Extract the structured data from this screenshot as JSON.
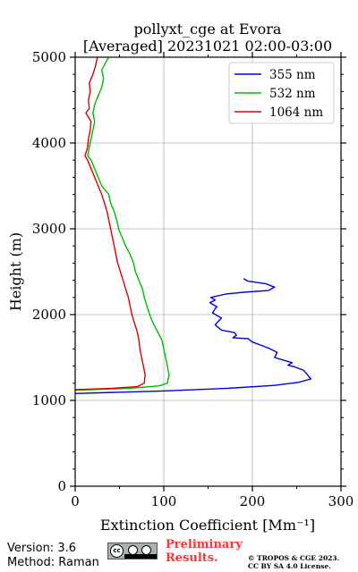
{
  "chart_data": {
    "type": "line",
    "title_line1": "pollyxt_cge at Evora",
    "title_line2": "[Averaged] 20231021 02:00-03:00",
    "xlabel": "Extinction Coefficient [Mm⁻¹]",
    "ylabel": "Height (m)",
    "xlim": [
      0,
      300
    ],
    "ylim": [
      0,
      5000
    ],
    "x_ticks": [
      0,
      100,
      200,
      300
    ],
    "y_ticks": [
      0,
      1000,
      2000,
      3000,
      4000,
      5000
    ],
    "grid": true,
    "legend_position": "top-right",
    "series": [
      {
        "name": "355 nm",
        "color": "#0000dd",
        "points": [
          [
            0,
            1080
          ],
          [
            100,
            1110
          ],
          [
            170,
            1140
          ],
          [
            225,
            1175
          ],
          [
            252,
            1210
          ],
          [
            266,
            1250
          ],
          [
            262,
            1300
          ],
          [
            258,
            1350
          ],
          [
            248,
            1390
          ],
          [
            240,
            1410
          ],
          [
            245,
            1440
          ],
          [
            235,
            1470
          ],
          [
            225,
            1500
          ],
          [
            228,
            1560
          ],
          [
            218,
            1610
          ],
          [
            200,
            1680
          ],
          [
            195,
            1720
          ],
          [
            178,
            1730
          ],
          [
            182,
            1760
          ],
          [
            180,
            1790
          ],
          [
            165,
            1820
          ],
          [
            158,
            1880
          ],
          [
            165,
            1960
          ],
          [
            155,
            2020
          ],
          [
            158,
            2070
          ],
          [
            160,
            2090
          ],
          [
            152,
            2140
          ],
          [
            158,
            2170
          ],
          [
            153,
            2200
          ],
          [
            170,
            2240
          ],
          [
            190,
            2260
          ],
          [
            218,
            2280
          ],
          [
            225,
            2320
          ],
          [
            215,
            2360
          ],
          [
            195,
            2390
          ],
          [
            190,
            2420
          ]
        ]
      },
      {
        "name": "532 nm",
        "color": "#00bb00",
        "points": [
          [
            0,
            1120
          ],
          [
            60,
            1140
          ],
          [
            95,
            1170
          ],
          [
            104,
            1200
          ],
          [
            106,
            1300
          ],
          [
            104,
            1400
          ],
          [
            102,
            1500
          ],
          [
            100,
            1600
          ],
          [
            98,
            1700
          ],
          [
            93,
            1800
          ],
          [
            88,
            1900
          ],
          [
            84,
            2000
          ],
          [
            81,
            2100
          ],
          [
            78,
            2200
          ],
          [
            76,
            2300
          ],
          [
            72,
            2400
          ],
          [
            68,
            2500
          ],
          [
            66,
            2600
          ],
          [
            62,
            2700
          ],
          [
            57,
            2800
          ],
          [
            53,
            2900
          ],
          [
            49,
            3000
          ],
          [
            47,
            3100
          ],
          [
            44,
            3200
          ],
          [
            40,
            3300
          ],
          [
            38,
            3400
          ],
          [
            30,
            3500
          ],
          [
            26,
            3600
          ],
          [
            22,
            3700
          ],
          [
            18,
            3800
          ],
          [
            14,
            3850
          ],
          [
            16,
            3950
          ],
          [
            18,
            4050
          ],
          [
            20,
            4150
          ],
          [
            22,
            4250
          ],
          [
            20,
            4350
          ],
          [
            22,
            4450
          ],
          [
            26,
            4550
          ],
          [
            30,
            4650
          ],
          [
            32,
            4750
          ],
          [
            30,
            4850
          ],
          [
            35,
            4950
          ],
          [
            38,
            5000
          ]
        ]
      },
      {
        "name": "1064 nm",
        "color": "#dd0000",
        "points": [
          [
            0,
            1125
          ],
          [
            40,
            1140
          ],
          [
            70,
            1160
          ],
          [
            78,
            1200
          ],
          [
            79,
            1300
          ],
          [
            77,
            1400
          ],
          [
            75,
            1500
          ],
          [
            73,
            1600
          ],
          [
            72,
            1700
          ],
          [
            70,
            1800
          ],
          [
            67,
            1900
          ],
          [
            64,
            2000
          ],
          [
            62,
            2100
          ],
          [
            60,
            2200
          ],
          [
            57,
            2300
          ],
          [
            54,
            2400
          ],
          [
            51,
            2500
          ],
          [
            48,
            2600
          ],
          [
            46,
            2700
          ],
          [
            44,
            2800
          ],
          [
            42,
            2900
          ],
          [
            40,
            3000
          ],
          [
            38,
            3100
          ],
          [
            36,
            3200
          ],
          [
            33,
            3300
          ],
          [
            30,
            3400
          ],
          [
            26,
            3500
          ],
          [
            22,
            3600
          ],
          [
            18,
            3700
          ],
          [
            14,
            3800
          ],
          [
            11,
            3850
          ],
          [
            14,
            3950
          ],
          [
            15,
            4050
          ],
          [
            17,
            4150
          ],
          [
            18,
            4250
          ],
          [
            12,
            4350
          ],
          [
            16,
            4400
          ],
          [
            15,
            4500
          ],
          [
            17,
            4600
          ],
          [
            16,
            4700
          ],
          [
            20,
            4800
          ],
          [
            23,
            4900
          ],
          [
            25,
            5000
          ]
        ]
      }
    ]
  },
  "footer": {
    "version": "Version: 3.6",
    "method": "Method: Raman",
    "preliminary_line1": "Preliminary",
    "preliminary_line2": "Results.",
    "copyright_line1": "© TROPOS & CGE 2023.",
    "copyright_line2": "CC BY SA 4.0 License."
  },
  "license_badge": {
    "cc_text": "cc",
    "by_text": "BY",
    "sa_text": "SA"
  }
}
